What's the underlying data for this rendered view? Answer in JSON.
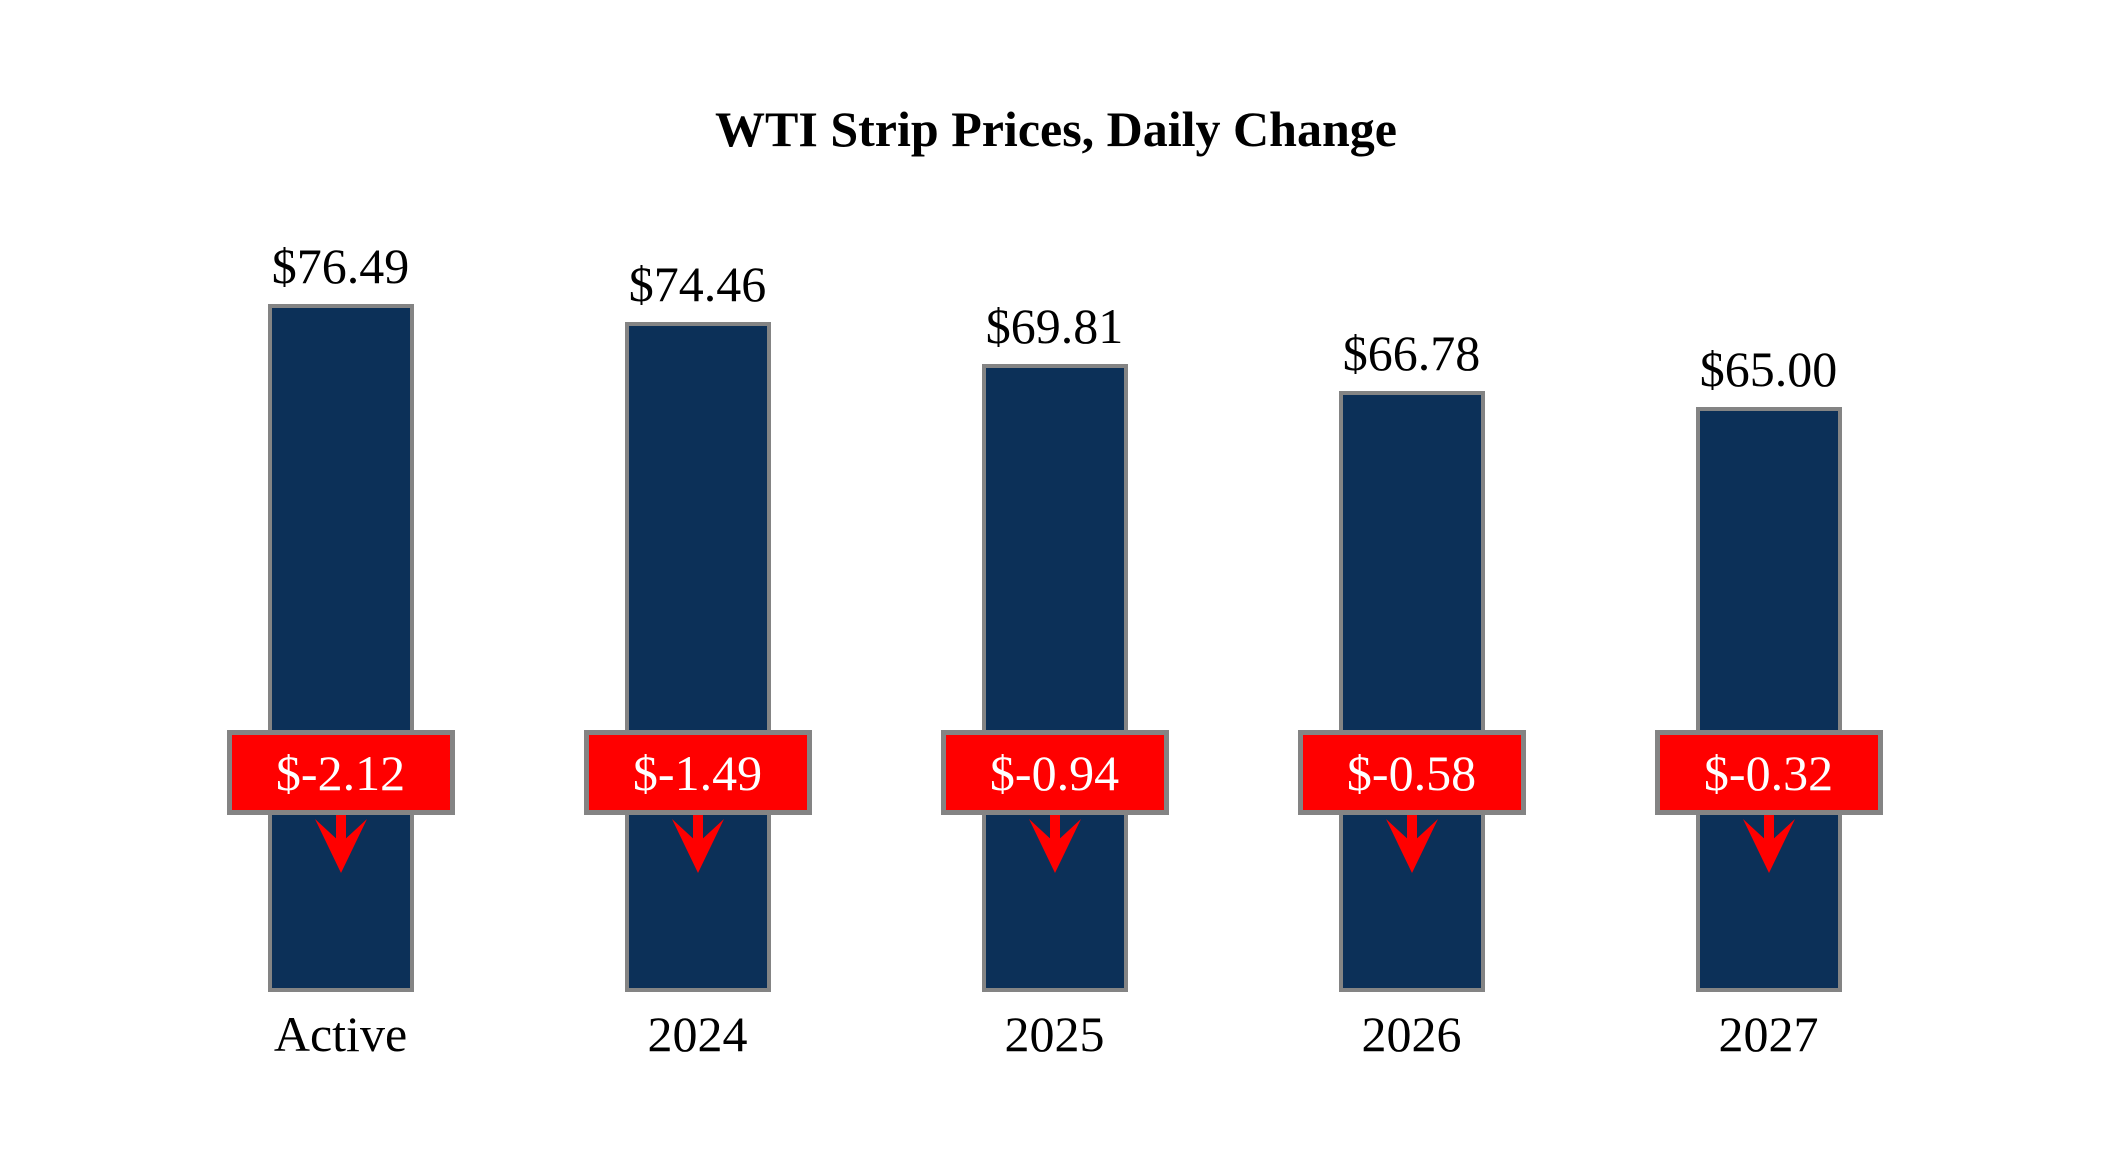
{
  "chart_data": {
    "type": "bar",
    "title": "WTI Strip Prices, Daily Change",
    "categories": [
      "Active",
      "2024",
      "2025",
      "2026",
      "2027"
    ],
    "series": [
      {
        "name": "WTI Strip Price",
        "values": [
          76.49,
          74.46,
          69.81,
          66.78,
          65.0
        ],
        "labels": [
          "$76.49",
          "$74.46",
          "$69.81",
          "$66.78",
          "$65.00"
        ]
      },
      {
        "name": "Daily Change",
        "values": [
          -2.12,
          -1.49,
          -0.94,
          -0.58,
          -0.32
        ],
        "labels": [
          "$-2.12",
          "$-1.49",
          "$-0.94",
          "$-0.58",
          "$-0.32"
        ]
      }
    ],
    "ylim": [
      0,
      76.49
    ],
    "grid": false,
    "legend": "none",
    "axes_visible": false,
    "colors": {
      "bar_fill": "#0c3058",
      "bar_border": "#848484",
      "change_fill": "#ff0000",
      "change_border": "#848484",
      "change_text": "#ffffff",
      "arrow": "#ff0000",
      "label_text": "#000000",
      "background": "#ffffff"
    }
  }
}
